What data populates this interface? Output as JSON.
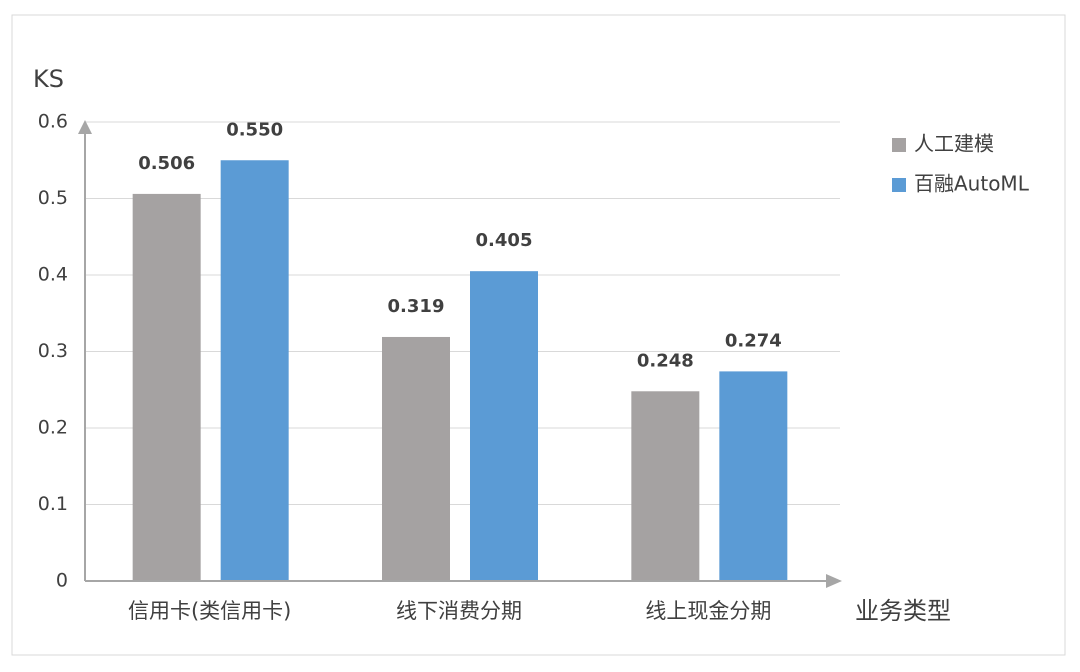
{
  "chart_data": {
    "type": "bar",
    "y_label": "KS",
    "x_label": "业务类型",
    "categories": [
      "信用卡(类信用卡)",
      "线下消费分期",
      "线上现金分期"
    ],
    "series": [
      {
        "name": "人工建模",
        "color": "#a5a2a2",
        "values": [
          0.506,
          0.319,
          0.248
        ],
        "value_labels": [
          "0.506",
          "0.319",
          "0.248"
        ]
      },
      {
        "name": "百融AutoML",
        "color": "#5b9bd5",
        "values": [
          0.55,
          0.405,
          0.274
        ],
        "value_labels": [
          "0.550",
          "0.405",
          "0.274"
        ]
      }
    ],
    "ylim": [
      0,
      0.6
    ],
    "yticks": [
      0,
      0.1,
      0.2,
      0.3,
      0.4,
      0.5,
      0.6
    ],
    "grid": true,
    "legend": "right"
  }
}
